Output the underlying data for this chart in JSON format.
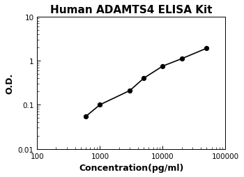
{
  "title": "Human ADAMTS4 ELISA Kit",
  "xlabel": "Concentration(pg/ml)",
  "ylabel": "O.D.",
  "xlim": [
    100,
    100000
  ],
  "ylim": [
    0.01,
    10
  ],
  "x_data": [
    600,
    1000,
    3000,
    5000,
    10000,
    20000,
    50000
  ],
  "y_data": [
    0.055,
    0.1,
    0.21,
    0.4,
    0.75,
    1.1,
    1.9
  ],
  "curve_x_start": 500,
  "curve_x_end": 60000,
  "curve_color": "black",
  "dot_color": "black",
  "dot_size": 18,
  "line_width": 1.2,
  "background_color": "white",
  "title_fontsize": 11,
  "label_fontsize": 9,
  "tick_fontsize": 7.5
}
